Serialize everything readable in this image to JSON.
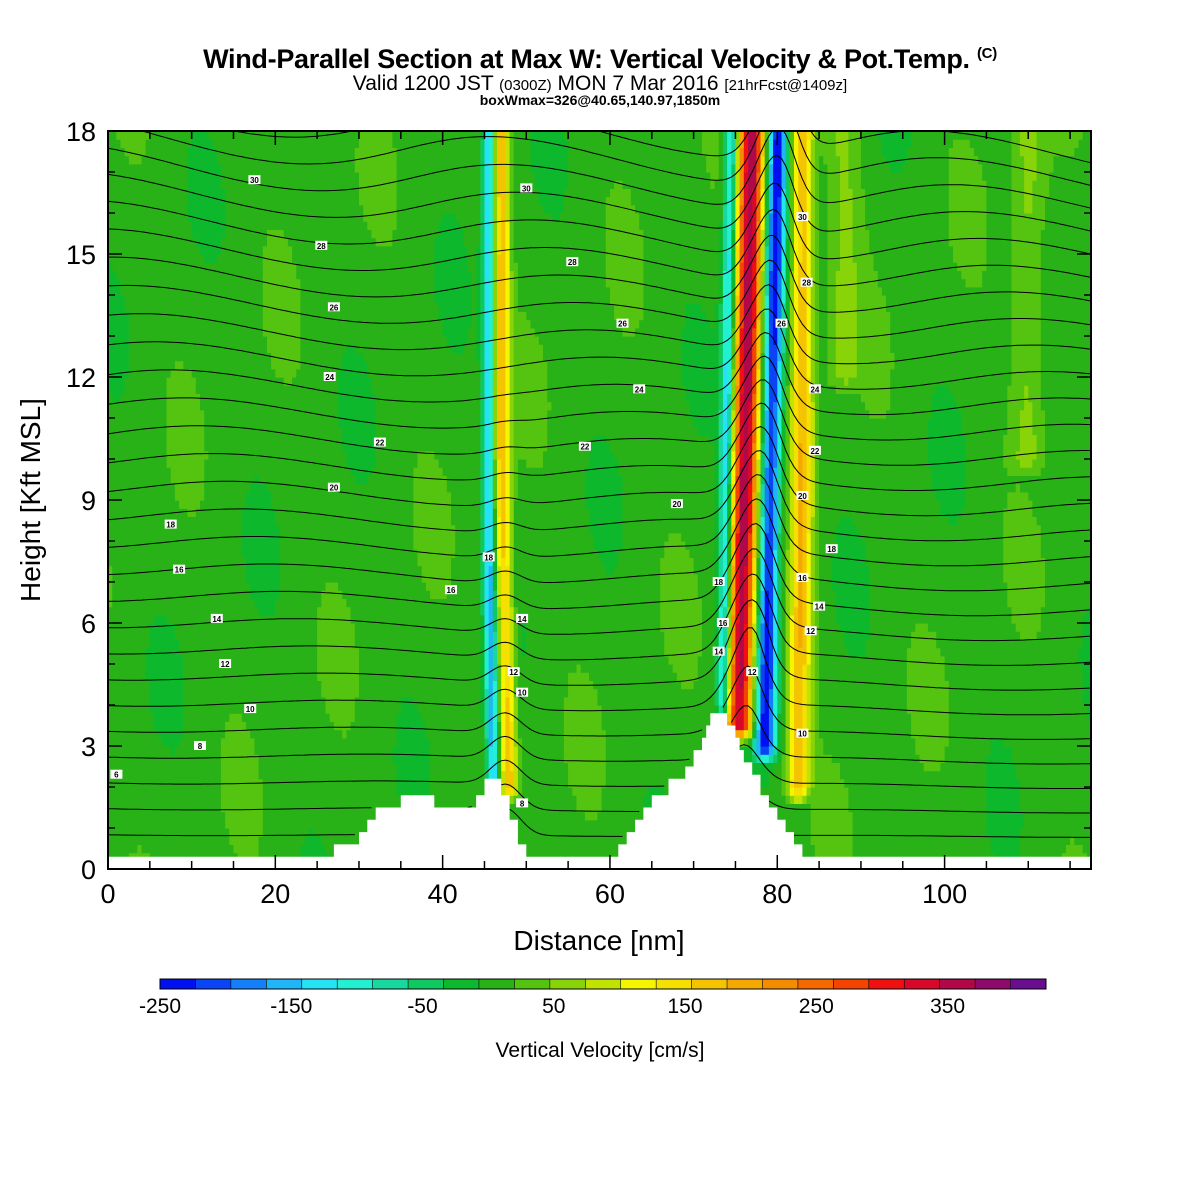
{
  "header": {
    "title": "Wind-Parallel Section at Max W: Vertical Velocity & Pot.Temp.",
    "copyright": "(C)",
    "valid_prefix": "Valid 1200 JST",
    "valid_utc": "(0300Z)",
    "valid_date": "MON 7 Mar 2016",
    "forecast": "[21hrFcst@1409z]",
    "box_info": "boxWmax=326@40.65,140.97,1850m"
  },
  "colors": {
    "colorbar": [
      "#0010f0",
      "#0a45f5",
      "#137ff8",
      "#1fb5f8",
      "#25e2f5",
      "#22f0d0",
      "#18d8a0",
      "#10c860",
      "#0eb82c",
      "#28b218",
      "#55c410",
      "#88d408",
      "#c0e400",
      "#f5f500",
      "#f5e000",
      "#f5c400",
      "#f5a800",
      "#f58c00",
      "#f56a00",
      "#f54400",
      "#f01010",
      "#d8082a",
      "#b00848",
      "#8e0a6a",
      "#6a0e90"
    ]
  },
  "chart_data": {
    "type": "heatmap",
    "xlabel": "Distance [nm]",
    "ylabel": "Height [Kft MSL]",
    "xlim": [
      0,
      117.5
    ],
    "ylim": [
      0,
      18
    ],
    "x_ticks": [
      "0",
      "20",
      "40",
      "60",
      "80",
      "100"
    ],
    "y_ticks": [
      "0",
      "3",
      "6",
      "9",
      "12",
      "15",
      "18"
    ],
    "colorbar": {
      "label": "Vertical Velocity [cm/s]",
      "min": -250,
      "max": 425,
      "step": 25,
      "tick_labels": [
        "-250",
        "-150",
        "-50",
        "50",
        "150",
        "250",
        "350"
      ]
    },
    "terrain_kft": [
      [
        0,
        0.3
      ],
      [
        27,
        0.3
      ],
      [
        27,
        0.6
      ],
      [
        30,
        0.6
      ],
      [
        30,
        0.9
      ],
      [
        31,
        0.9
      ],
      [
        31,
        1.2
      ],
      [
        32,
        1.2
      ],
      [
        32,
        1.5
      ],
      [
        35,
        1.5
      ],
      [
        35,
        1.8
      ],
      [
        39,
        1.8
      ],
      [
        39,
        1.5
      ],
      [
        44,
        1.5
      ],
      [
        44,
        1.8
      ],
      [
        45,
        1.8
      ],
      [
        45,
        2.2
      ],
      [
        47,
        2.2
      ],
      [
        47,
        1.8
      ],
      [
        48,
        1.8
      ],
      [
        48,
        1.2
      ],
      [
        49,
        1.2
      ],
      [
        49,
        0.6
      ],
      [
        50,
        0.6
      ],
      [
        50,
        0.3
      ],
      [
        61,
        0.3
      ],
      [
        61,
        0.6
      ],
      [
        62,
        0.6
      ],
      [
        62,
        0.9
      ],
      [
        63,
        0.9
      ],
      [
        63,
        1.2
      ],
      [
        64,
        1.2
      ],
      [
        64,
        1.5
      ],
      [
        65,
        1.5
      ],
      [
        65,
        1.8
      ],
      [
        67,
        1.8
      ],
      [
        67,
        2.2
      ],
      [
        69,
        2.2
      ],
      [
        69,
        2.5
      ],
      [
        70,
        2.5
      ],
      [
        70,
        2.9
      ],
      [
        71,
        2.9
      ],
      [
        71,
        3.2
      ],
      [
        71.5,
        3.2
      ],
      [
        71.5,
        3.5
      ],
      [
        72,
        3.5
      ],
      [
        72,
        3.8
      ],
      [
        74,
        3.8
      ],
      [
        74,
        3.5
      ],
      [
        75,
        3.5
      ],
      [
        75,
        3.2
      ],
      [
        75.5,
        3.2
      ],
      [
        75.5,
        2.9
      ],
      [
        76,
        2.9
      ],
      [
        76,
        2.6
      ],
      [
        77,
        2.6
      ],
      [
        77,
        2.3
      ],
      [
        78,
        2.3
      ],
      [
        78,
        1.8
      ],
      [
        79,
        1.8
      ],
      [
        79,
        1.5
      ],
      [
        80,
        1.5
      ],
      [
        80,
        1.2
      ],
      [
        81,
        1.2
      ],
      [
        81,
        0.9
      ],
      [
        82,
        0.9
      ],
      [
        82,
        0.6
      ],
      [
        83,
        0.6
      ],
      [
        83,
        0.3
      ],
      [
        117.5,
        0.3
      ]
    ],
    "vertical_velocity_features": [
      {
        "x_base": 48,
        "x_top": 47,
        "z_bottom": 2,
        "z_top": 10,
        "w": 150,
        "width": 1.0
      },
      {
        "x_base": 46,
        "x_top": 45.5,
        "z_bottom": 2,
        "z_top": 8,
        "w": -150,
        "width": 0.7
      },
      {
        "x_base": 75.5,
        "x_top": 77,
        "z_bottom": 3.5,
        "z_top": 18,
        "w": 330,
        "width": 1.6
      },
      {
        "x_base": 78.5,
        "x_top": 80,
        "z_bottom": 3,
        "z_top": 18,
        "w": -230,
        "width": 1.2
      },
      {
        "x_base": 73.5,
        "x_top": 74.5,
        "z_bottom": 4,
        "z_top": 18,
        "w": -150,
        "width": 0.8
      },
      {
        "x_base": 82.5,
        "x_top": 83,
        "z_bottom": 2,
        "z_top": 9,
        "w": 160,
        "width": 1.3
      },
      {
        "x_base": 110,
        "x_top": 110,
        "z_bottom": 10,
        "z_top": 18,
        "w": 45,
        "width": 2.0
      },
      {
        "x_base": 88,
        "x_top": 88,
        "z_bottom": 12,
        "z_top": 18,
        "w": 40,
        "width": 2.0
      }
    ],
    "isentrope_labels": [
      {
        "x": 17.5,
        "z": 16.8,
        "text": "30"
      },
      {
        "x": 25.5,
        "z": 15.2,
        "text": "28"
      },
      {
        "x": 27,
        "z": 13.7,
        "text": "26"
      },
      {
        "x": 26.5,
        "z": 12.0,
        "text": "24"
      },
      {
        "x": 32.5,
        "z": 10.4,
        "text": "22"
      },
      {
        "x": 27,
        "z": 9.3,
        "text": "20"
      },
      {
        "x": 7.5,
        "z": 8.4,
        "text": "18"
      },
      {
        "x": 8.5,
        "z": 7.3,
        "text": "16"
      },
      {
        "x": 13,
        "z": 6.1,
        "text": "14"
      },
      {
        "x": 14,
        "z": 5.0,
        "text": "12"
      },
      {
        "x": 17,
        "z": 3.9,
        "text": "10"
      },
      {
        "x": 11,
        "z": 3.0,
        "text": "8"
      },
      {
        "x": 1,
        "z": 2.3,
        "text": "6"
      },
      {
        "x": 50,
        "z": 16.6,
        "text": "30"
      },
      {
        "x": 55.5,
        "z": 14.8,
        "text": "28"
      },
      {
        "x": 61.5,
        "z": 13.3,
        "text": "26"
      },
      {
        "x": 63.5,
        "z": 11.7,
        "text": "24"
      },
      {
        "x": 57,
        "z": 10.3,
        "text": "22"
      },
      {
        "x": 68,
        "z": 8.9,
        "text": "20"
      },
      {
        "x": 45.5,
        "z": 7.6,
        "text": "18"
      },
      {
        "x": 41,
        "z": 6.8,
        "text": "16"
      },
      {
        "x": 49.5,
        "z": 6.1,
        "text": "14"
      },
      {
        "x": 48.5,
        "z": 4.8,
        "text": "12"
      },
      {
        "x": 49.5,
        "z": 4.3,
        "text": "10"
      },
      {
        "x": 49.5,
        "z": 1.6,
        "text": "8"
      },
      {
        "x": 83,
        "z": 15.9,
        "text": "30"
      },
      {
        "x": 83.5,
        "z": 14.3,
        "text": "28"
      },
      {
        "x": 80.5,
        "z": 13.3,
        "text": "26"
      },
      {
        "x": 84.5,
        "z": 11.7,
        "text": "24"
      },
      {
        "x": 84.5,
        "z": 10.2,
        "text": "22"
      },
      {
        "x": 83,
        "z": 9.1,
        "text": "20"
      },
      {
        "x": 86.5,
        "z": 7.8,
        "text": "18"
      },
      {
        "x": 83,
        "z": 7.1,
        "text": "16"
      },
      {
        "x": 85,
        "z": 6.4,
        "text": "14"
      },
      {
        "x": 84,
        "z": 5.8,
        "text": "12"
      },
      {
        "x": 83,
        "z": 3.3,
        "text": "10"
      },
      {
        "x": 73,
        "z": 7.0,
        "text": "18"
      },
      {
        "x": 73.5,
        "z": 6.0,
        "text": "16"
      },
      {
        "x": 73,
        "z": 5.3,
        "text": "14"
      },
      {
        "x": 77,
        "z": 4.8,
        "text": "12"
      }
    ]
  }
}
